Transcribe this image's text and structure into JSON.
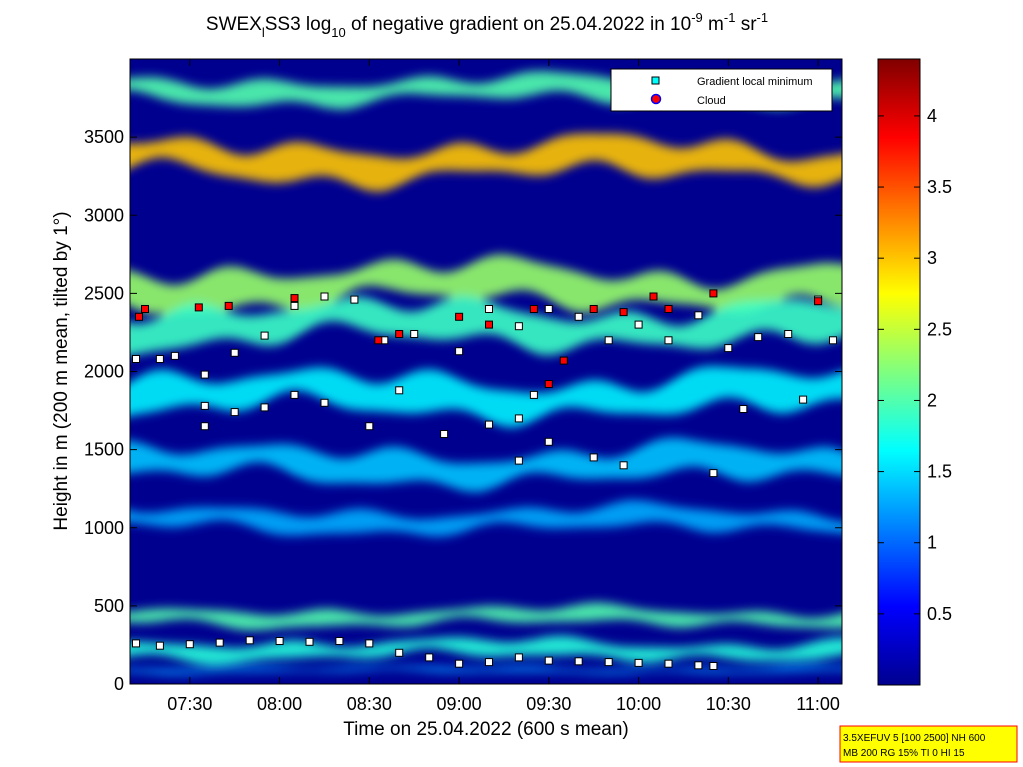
{
  "title": {
    "p1": "SWEX",
    "p1_sub": "l",
    "p2": "SS3 log",
    "p2_sub": "10",
    "p3": " of negative gradient on 25.04.2022 in 10",
    "p3_sup": "-9",
    "p4": " m",
    "p4_sup": "-1",
    "p5": " sr",
    "p5_sup": "-1"
  },
  "info_box": {
    "line1": "3.5XEFUV 5 [100 2500] NH 600",
    "line2": "MB 200 RG 15% TI 0 HI 15",
    "background": "#ffff00",
    "border": "#ff0000"
  },
  "chart_data": {
    "type": "heatmap",
    "xlabel": "Time on 25.04.2022 (600 s mean)",
    "ylabel": "Height in m (200 m mean, tilted by 1°)",
    "xlim": [
      "07:10",
      "11:08"
    ],
    "ylim": [
      0,
      4000
    ],
    "x_ticks": [
      "07:30",
      "08:00",
      "08:30",
      "09:00",
      "09:30",
      "10:00",
      "10:30",
      "11:00"
    ],
    "y_ticks": [
      0,
      500,
      1000,
      1500,
      2000,
      2500,
      3000,
      3500
    ],
    "colorbar": {
      "colormap": "jet",
      "range": [
        0,
        4.4
      ],
      "ticks": [
        0.5,
        1,
        1.5,
        2,
        2.5,
        3,
        3.5,
        4
      ]
    },
    "legend": {
      "placement": "top-right",
      "entries": [
        {
          "label": "Gradient local minimum",
          "marker": "square",
          "color": "#00ffff"
        },
        {
          "label": "Cloud",
          "marker": "circle",
          "color": "#ff0000",
          "edge": "#0000ff"
        }
      ]
    },
    "layers": [
      {
        "height": 3350,
        "thickness": 240,
        "value": 3.0
      },
      {
        "height": 3800,
        "thickness": 160,
        "value": 2.0
      },
      {
        "height": 2550,
        "thickness": 260,
        "value": 2.3
      },
      {
        "height": 2300,
        "thickness": 260,
        "value": 1.9
      },
      {
        "height": 1850,
        "thickness": 260,
        "value": 1.6
      },
      {
        "height": 1400,
        "thickness": 220,
        "value": 1.4
      },
      {
        "height": 1050,
        "thickness": 150,
        "value": 1.3
      },
      {
        "height": 430,
        "thickness": 110,
        "value": 2.0
      },
      {
        "height": 220,
        "thickness": 120,
        "value": 1.8
      },
      {
        "height": 90,
        "thickness": 40,
        "value": 1.2
      }
    ],
    "series": [
      {
        "name": "Gradient local minimum",
        "points": [
          [
            "07:12",
            260
          ],
          [
            "07:20",
            245
          ],
          [
            "07:30",
            255
          ],
          [
            "07:40",
            265
          ],
          [
            "07:50",
            280
          ],
          [
            "08:00",
            275
          ],
          [
            "08:10",
            270
          ],
          [
            "08:20",
            275
          ],
          [
            "08:30",
            260
          ],
          [
            "08:40",
            200
          ],
          [
            "08:50",
            170
          ],
          [
            "09:00",
            130
          ],
          [
            "09:10",
            140
          ],
          [
            "09:20",
            170
          ],
          [
            "09:30",
            150
          ],
          [
            "09:40",
            145
          ],
          [
            "09:50",
            140
          ],
          [
            "10:00",
            135
          ],
          [
            "10:10",
            130
          ],
          [
            "10:20",
            120
          ],
          [
            "10:25",
            115
          ],
          [
            "07:12",
            2080
          ],
          [
            "07:20",
            2080
          ],
          [
            "07:25",
            2100
          ],
          [
            "07:35",
            1980
          ],
          [
            "07:45",
            2120
          ],
          [
            "07:55",
            2230
          ],
          [
            "08:05",
            2420
          ],
          [
            "08:15",
            2480
          ],
          [
            "08:25",
            2460
          ],
          [
            "08:35",
            2200
          ],
          [
            "08:45",
            2240
          ],
          [
            "09:00",
            2130
          ],
          [
            "09:10",
            2400
          ],
          [
            "09:20",
            2290
          ],
          [
            "09:30",
            2400
          ],
          [
            "09:40",
            2350
          ],
          [
            "09:50",
            2200
          ],
          [
            "10:00",
            2300
          ],
          [
            "10:10",
            2200
          ],
          [
            "10:20",
            2360
          ],
          [
            "10:30",
            2150
          ],
          [
            "10:40",
            2220
          ],
          [
            "10:50",
            2240
          ],
          [
            "11:00",
            2460
          ],
          [
            "11:05",
            2200
          ],
          [
            "07:35",
            1780
          ],
          [
            "07:45",
            1740
          ],
          [
            "07:55",
            1770
          ],
          [
            "08:05",
            1850
          ],
          [
            "08:15",
            1800
          ],
          [
            "08:30",
            1650
          ],
          [
            "08:40",
            1880
          ],
          [
            "08:55",
            1600
          ],
          [
            "09:10",
            1660
          ],
          [
            "09:20",
            1700
          ],
          [
            "09:25",
            1850
          ],
          [
            "09:30",
            1550
          ],
          [
            "09:45",
            1450
          ],
          [
            "09:55",
            1400
          ],
          [
            "10:25",
            1350
          ],
          [
            "10:35",
            1760
          ],
          [
            "10:55",
            1820
          ],
          [
            "07:35",
            1650
          ],
          [
            "09:20",
            1430
          ]
        ]
      },
      {
        "name": "Cloud",
        "points": [
          [
            "07:13",
            2350
          ],
          [
            "07:15",
            2400
          ],
          [
            "07:33",
            2410
          ],
          [
            "07:43",
            2420
          ],
          [
            "08:05",
            2470
          ],
          [
            "08:33",
            2200
          ],
          [
            "08:40",
            2240
          ],
          [
            "09:00",
            2350
          ],
          [
            "09:10",
            2300
          ],
          [
            "09:25",
            2400
          ],
          [
            "09:30",
            1920
          ],
          [
            "09:35",
            2070
          ],
          [
            "09:45",
            2400
          ],
          [
            "09:55",
            2380
          ],
          [
            "10:05",
            2480
          ],
          [
            "10:10",
            2400
          ],
          [
            "10:25",
            2500
          ],
          [
            "11:00",
            2450
          ]
        ]
      }
    ]
  }
}
